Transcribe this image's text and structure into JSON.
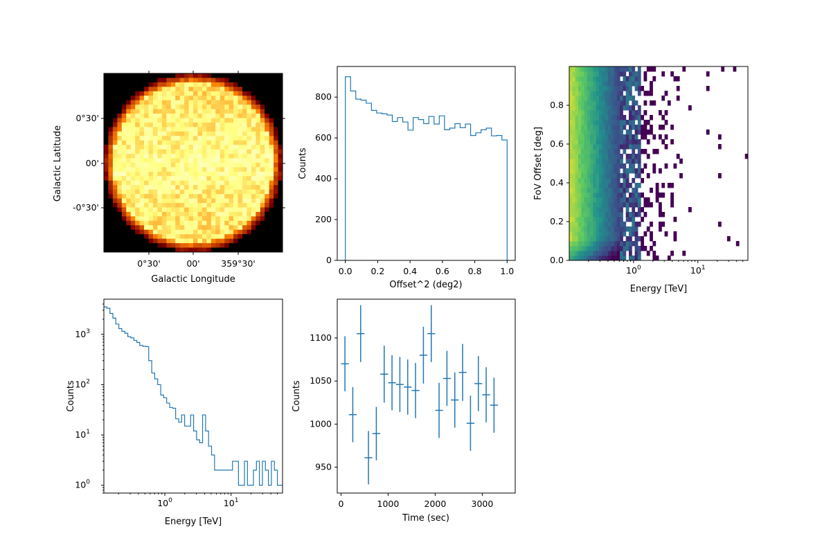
{
  "chart_data": [
    {
      "type": "heatmap",
      "panel": "sky-map",
      "xlabel": "Galactic Longitude",
      "ylabel": "Galactic Latitude",
      "x_ticks": [
        "0°30'",
        "00'",
        "359°30'"
      ],
      "y_ticks": [
        "0°30'",
        "00'",
        "-0°30'"
      ],
      "x_range_deg": [
        1.0,
        -1.0
      ],
      "y_range_deg": [
        -1.0,
        1.0
      ],
      "colormap": "afmhot",
      "description_values": {
        "disk_radius_deg": 1.0
      }
    },
    {
      "type": "line",
      "panel": "offset2-histogram",
      "style": "step",
      "xlabel": "Offset^2 (deg2)",
      "ylabel": "Counts",
      "xlim": [
        -0.05,
        1.05
      ],
      "ylim": [
        0,
        950
      ],
      "x_ticks": [
        "0.0",
        "0.2",
        "0.4",
        "0.6",
        "0.8",
        "1.0"
      ],
      "y_ticks": [
        "0",
        "200",
        "400",
        "600",
        "800"
      ],
      "x_tick_values": [
        0.0,
        0.2,
        0.4,
        0.6,
        0.8,
        1.0
      ],
      "y_tick_values": [
        0,
        200,
        400,
        600,
        800
      ],
      "bin_edges_start": 0.0,
      "bin_width": 0.0333,
      "values": [
        900,
        830,
        790,
        785,
        770,
        735,
        722,
        718,
        712,
        680,
        700,
        678,
        638,
        700,
        690,
        670,
        705,
        668,
        708,
        640,
        648,
        670,
        650,
        668,
        612,
        625,
        640,
        648,
        610,
        612,
        590
      ]
    },
    {
      "type": "heatmap",
      "panel": "energy-offset",
      "xlabel": "Energy [TeV]",
      "ylabel": "FoV Offset [deg]",
      "x_scale": "log",
      "xlim": [
        0.1,
        60
      ],
      "ylim": [
        0.0,
        1.0
      ],
      "x_ticks": [
        "10",
        "10"
      ],
      "x_tick_exponents": [
        "0",
        "1"
      ],
      "x_tick_values": [
        1,
        10
      ],
      "y_ticks": [
        "0.0",
        "0.2",
        "0.4",
        "0.6",
        "0.8"
      ],
      "y_tick_values": [
        0.0,
        0.2,
        0.4,
        0.6,
        0.8
      ],
      "colormap": "viridis"
    },
    {
      "type": "line",
      "panel": "energy-histogram",
      "style": "step",
      "xlabel": "Energy [TeV]",
      "ylabel": "Counts",
      "x_scale": "log",
      "y_scale": "log",
      "xlim": [
        0.12,
        60
      ],
      "ylim": [
        0.7,
        5000
      ],
      "x_ticks": [
        "10",
        "10"
      ],
      "x_tick_exponents": [
        "0",
        "1"
      ],
      "x_tick_values": [
        1,
        10
      ],
      "y_ticks": [
        "10",
        "10",
        "10",
        "10"
      ],
      "y_tick_exponents": [
        "0",
        "1",
        "2",
        "3"
      ],
      "y_tick_values": [
        1,
        10,
        100,
        1000
      ],
      "bin_edges": [
        0.12,
        0.133,
        0.148,
        0.164,
        0.182,
        0.202,
        0.224,
        0.249,
        0.276,
        0.306,
        0.34,
        0.377,
        0.418,
        0.464,
        0.515,
        0.571,
        0.634,
        0.703,
        0.78,
        0.866,
        0.961,
        1.066,
        1.183,
        1.313,
        1.457,
        1.617,
        1.794,
        1.991,
        2.209,
        2.452,
        2.721,
        3.019,
        3.35,
        3.718,
        4.126,
        4.578,
        5.08,
        5.638,
        6.256,
        6.942,
        7.704,
        8.549,
        9.486,
        10.527,
        11.68,
        12.96,
        14.38,
        15.96,
        17.71,
        19.65,
        21.81,
        24.2,
        26.86,
        29.8,
        33.07,
        36.7,
        40.72,
        45.19,
        50.14,
        55.64,
        60.0
      ],
      "values": [
        3500,
        3300,
        2600,
        2100,
        1600,
        1300,
        1150,
        1050,
        900,
        850,
        760,
        690,
        600,
        580,
        570,
        300,
        170,
        130,
        100,
        62,
        55,
        43,
        35,
        34,
        21,
        18,
        25,
        15,
        15,
        25,
        12,
        8,
        7,
        25,
        12,
        6,
        4,
        2,
        2,
        2,
        2,
        2,
        2,
        3,
        3,
        1,
        1,
        3,
        1,
        1,
        2,
        3,
        1,
        3,
        2,
        1,
        3,
        2,
        1,
        1
      ]
    },
    {
      "type": "scatter",
      "panel": "light-curve",
      "style": "errorbar",
      "xlabel": "Time (sec)",
      "ylabel": "Counts",
      "xlim": [
        -80,
        3700
      ],
      "ylim": [
        920,
        1145
      ],
      "x_ticks": [
        "0",
        "1000",
        "2000",
        "3000"
      ],
      "y_ticks": [
        "950",
        "1000",
        "1050",
        "1100"
      ],
      "x_tick_values": [
        0,
        1000,
        2000,
        3000
      ],
      "y_tick_values": [
        950,
        1000,
        1050,
        1100
      ],
      "x_halfwidth": 83,
      "points": [
        {
          "x": 83,
          "y": 1070,
          "yerr": 32
        },
        {
          "x": 250,
          "y": 1011,
          "yerr": 32
        },
        {
          "x": 417,
          "y": 1105,
          "yerr": 33
        },
        {
          "x": 583,
          "y": 961,
          "yerr": 31
        },
        {
          "x": 750,
          "y": 989,
          "yerr": 31
        },
        {
          "x": 917,
          "y": 1058,
          "yerr": 33
        },
        {
          "x": 1083,
          "y": 1048,
          "yerr": 32
        },
        {
          "x": 1250,
          "y": 1046,
          "yerr": 32
        },
        {
          "x": 1417,
          "y": 1043,
          "yerr": 32
        },
        {
          "x": 1583,
          "y": 1039,
          "yerr": 32
        },
        {
          "x": 1750,
          "y": 1080,
          "yerr": 33
        },
        {
          "x": 1917,
          "y": 1105,
          "yerr": 33
        },
        {
          "x": 2083,
          "y": 1016,
          "yerr": 32
        },
        {
          "x": 2250,
          "y": 1053,
          "yerr": 32
        },
        {
          "x": 2417,
          "y": 1028,
          "yerr": 32
        },
        {
          "x": 2583,
          "y": 1060,
          "yerr": 33
        },
        {
          "x": 2750,
          "y": 1001,
          "yerr": 32
        },
        {
          "x": 2917,
          "y": 1047,
          "yerr": 32
        },
        {
          "x": 3083,
          "y": 1034,
          "yerr": 32
        },
        {
          "x": 3250,
          "y": 1022,
          "yerr": 32
        }
      ]
    }
  ]
}
